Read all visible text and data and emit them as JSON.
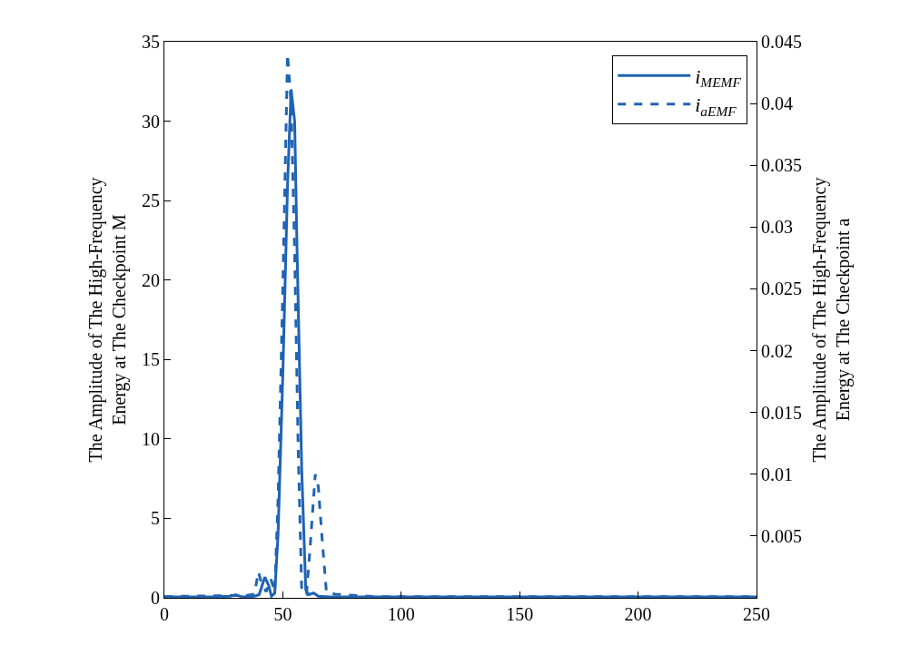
{
  "chart_data": {
    "type": "line",
    "ylabel": "The Amplitude of The High-Frequency\nEnergy at The Checkpoint M",
    "y2label": "The Amplitude of The High-Frequency\nEnergy at The Checkpoint a",
    "xlim": [
      0,
      250
    ],
    "xticks": [
      0,
      50,
      100,
      150,
      200,
      250
    ],
    "ylim": [
      0,
      35
    ],
    "yticks": [
      0,
      5,
      10,
      15,
      20,
      25,
      30,
      35
    ],
    "y2lim": [
      0,
      0.045
    ],
    "y2ticks": [
      0.005,
      0.01,
      0.015,
      0.02,
      0.025,
      0.03,
      0.035,
      0.04,
      0.045
    ],
    "legend": "top right",
    "marker": "none",
    "series": [
      {
        "name": "i$_{MEMF}$",
        "color": "#1f63b4",
        "line_style": "solid",
        "x": [
          0,
          10,
          20,
          28,
          30,
          33,
          38,
          40,
          42.4,
          44,
          45.2,
          46.6,
          48,
          50,
          52,
          53.5,
          55,
          56,
          58,
          59.7,
          61,
          63,
          65,
          70,
          100,
          150,
          200,
          250
        ],
        "values": [
          0.05,
          0.05,
          0.05,
          0.1,
          0.2,
          0.05,
          0.1,
          0.2,
          1.3,
          0.8,
          0.1,
          0.3,
          4,
          14,
          26,
          32,
          30,
          22,
          8,
          0.5,
          0.2,
          0.3,
          0.1,
          0.05,
          0.05,
          0.05,
          0.05,
          0.05
        ]
      },
      {
        "name": "i$_{aEMF}$",
        "color": "#1f63b4",
        "line_style": "dashed",
        "axis": "y2",
        "x": [
          0,
          35,
          38,
          39.7,
          41,
          43,
          45,
          46.6,
          48,
          50,
          52,
          53.5,
          55,
          56.5,
          58,
          60,
          61.5,
          63.7,
          65,
          66.5,
          68.4,
          72,
          80,
          90,
          250
        ],
        "values": [
          0.0001,
          0.0002,
          0.0003,
          0.0021,
          0.0012,
          0.0005,
          0.0015,
          0.0005,
          0.008,
          0.025,
          0.044,
          0.04,
          0.028,
          0.012,
          0.0005,
          0.0003,
          0.004,
          0.01,
          0.009,
          0.005,
          0.0005,
          0.0003,
          0.0002,
          0.0001,
          0.0001
        ]
      }
    ]
  }
}
